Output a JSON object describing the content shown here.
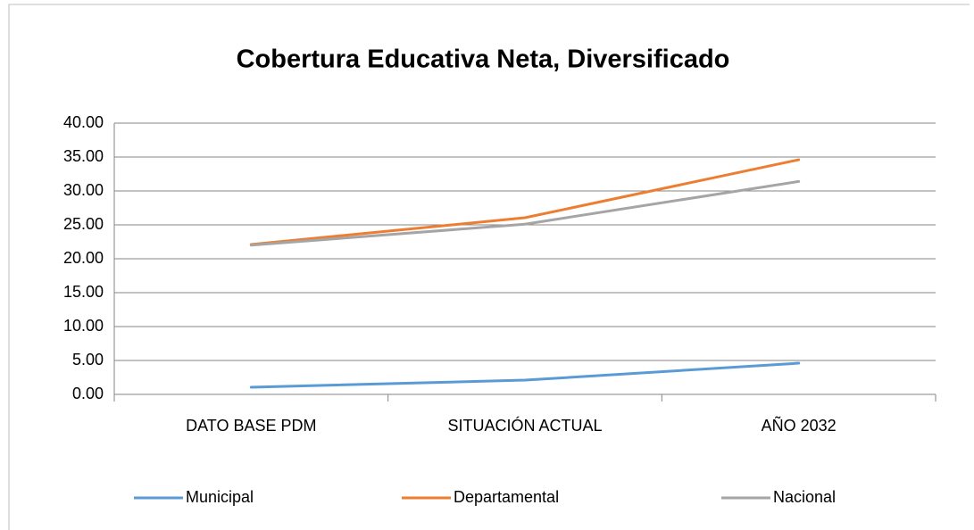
{
  "chart_data": {
    "type": "line",
    "title": "Cobertura Educativa Neta, Diversificado",
    "categories": [
      "DATO BASE PDM",
      "SITUACIÓN ACTUAL",
      "AÑO 2032"
    ],
    "series": [
      {
        "name": "Municipal",
        "color": "#5b9bd5",
        "values": [
          1.05,
          2.1,
          4.6
        ]
      },
      {
        "name": "Departamental",
        "color": "#ed7d31",
        "values": [
          22.1,
          26.05,
          34.6
        ]
      },
      {
        "name": "Nacional",
        "color": "#a5a5a5",
        "values": [
          22.0,
          25.1,
          31.4
        ]
      }
    ],
    "ylim": [
      0,
      40
    ],
    "yticks": [
      {
        "value": 0,
        "label": "0.00"
      },
      {
        "value": 5,
        "label": "5.00"
      },
      {
        "value": 10,
        "label": "10.00"
      },
      {
        "value": 15,
        "label": "15.00"
      },
      {
        "value": 20,
        "label": "20.00"
      },
      {
        "value": 25,
        "label": "25.00"
      },
      {
        "value": 30,
        "label": "30.00"
      },
      {
        "value": 35,
        "label": "35.00"
      },
      {
        "value": 40,
        "label": "40.00"
      }
    ],
    "grid": true,
    "legend": "bottom"
  }
}
